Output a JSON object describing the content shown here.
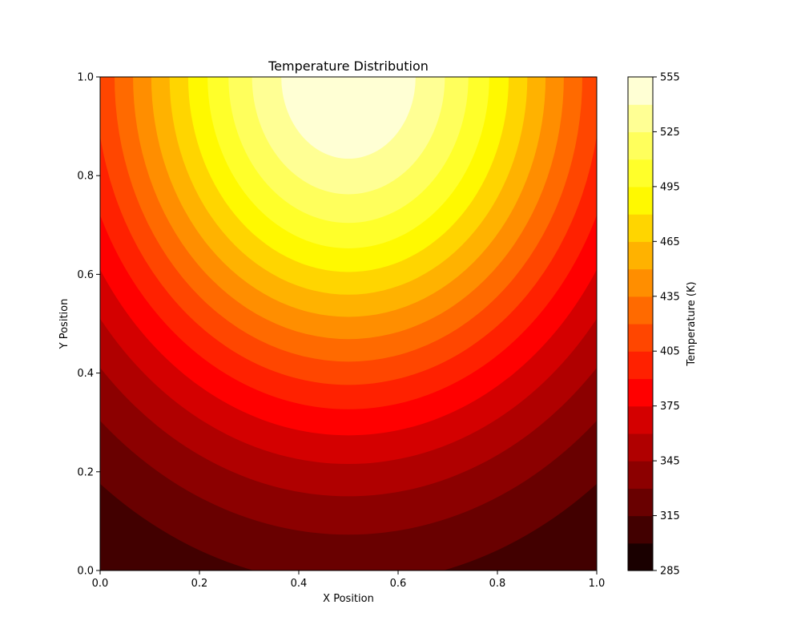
{
  "chart_data": {
    "type": "contour",
    "title": "Temperature Distribution",
    "xlabel": "X Position",
    "ylabel": "Y Position",
    "xlim": [
      0.0,
      1.0
    ],
    "ylim": [
      0.0,
      1.0
    ],
    "x_ticks": [
      "0.0",
      "0.2",
      "0.4",
      "0.6",
      "0.8",
      "1.0"
    ],
    "y_ticks": [
      "0.0",
      "0.2",
      "0.4",
      "0.6",
      "0.8",
      "1.0"
    ],
    "field": {
      "hotspot": [
        0.5,
        1.0
      ],
      "peak_value": 555,
      "min_value": 285,
      "amplitude": 270,
      "sigma_x2": 0.32,
      "sigma_y2": 0.48
    },
    "colorbar": {
      "label": "Temperature (K)",
      "vmin": 285,
      "vmax": 555,
      "step": 15,
      "tick_labels": [
        "285",
        "315",
        "345",
        "375",
        "405",
        "435",
        "465",
        "495",
        "525",
        "555"
      ],
      "level_colors": [
        "#1a0000",
        "#420000",
        "#690000",
        "#8c0000",
        "#b00000",
        "#d40000",
        "#ff0000",
        "#ff2100",
        "#ff4600",
        "#ff6a00",
        "#ff8e00",
        "#ffb200",
        "#ffd500",
        "#fff900",
        "#ffff2a",
        "#ffff5c",
        "#ffff94",
        "#ffffd4"
      ]
    },
    "grid": false,
    "legend": "none"
  }
}
